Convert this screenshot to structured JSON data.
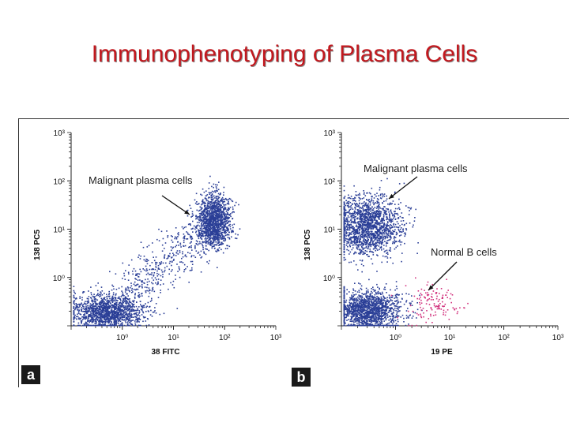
{
  "page": {
    "title": "Immunophenotyping of Plasma Cells"
  },
  "chart_data": [
    {
      "type": "scatter",
      "panel_label": "a",
      "xlabel": "38 FITC",
      "ylabel": "138 PC5",
      "x_scale": "log",
      "y_scale": "log",
      "xlim": [
        0.1,
        1000
      ],
      "ylim": [
        0.1,
        1000
      ],
      "x_ticks": [
        "10⁰",
        "10¹",
        "10²",
        "10³"
      ],
      "y_ticks": [
        "10⁰",
        "10¹",
        "10²",
        "10³"
      ],
      "series": [
        {
          "color": "#2b3f97",
          "approx_center": [
            0.5,
            0.2
          ],
          "spread_decades": [
            0.35,
            0.18
          ],
          "count": 1400
        },
        {
          "color": "#2b3f97",
          "approx_center": [
            60,
            15
          ],
          "spread_decades": [
            0.16,
            0.28
          ],
          "count": 1300
        },
        {
          "color": "#2b3f97",
          "approx_range_x": [
            1,
            60
          ],
          "approx_range_y": [
            0.4,
            15
          ],
          "count": 500
        }
      ],
      "annotations": [
        {
          "text": "Malignant plasma cells",
          "points_to": [
            50,
            25
          ]
        }
      ]
    },
    {
      "type": "scatter",
      "panel_label": "b",
      "xlabel": "19 PE",
      "ylabel": "138 PC5",
      "x_scale": "log",
      "y_scale": "log",
      "xlim": [
        0.1,
        1000
      ],
      "ylim": [
        0.1,
        1000
      ],
      "x_ticks": [
        "10⁰",
        "10¹",
        "10²",
        "10³"
      ],
      "y_ticks": [
        "10⁰",
        "10¹",
        "10²",
        "10³"
      ],
      "series": [
        {
          "color": "#2b3f97",
          "approx_center": [
            0.3,
            12
          ],
          "spread_decades": [
            0.3,
            0.3
          ],
          "count": 1700
        },
        {
          "color": "#2b3f97",
          "approx_center": [
            0.3,
            0.22
          ],
          "spread_decades": [
            0.3,
            0.2
          ],
          "count": 1500
        },
        {
          "color": "#d2337e",
          "approx_center": [
            5,
            0.3
          ],
          "spread_decades": [
            0.25,
            0.2
          ],
          "count": 130
        }
      ],
      "annotations": [
        {
          "text": "Malignant plasma cells",
          "points_to": [
            0.6,
            30
          ]
        },
        {
          "text": "Normal B cells",
          "points_to": [
            3,
            0.45
          ]
        }
      ]
    }
  ]
}
